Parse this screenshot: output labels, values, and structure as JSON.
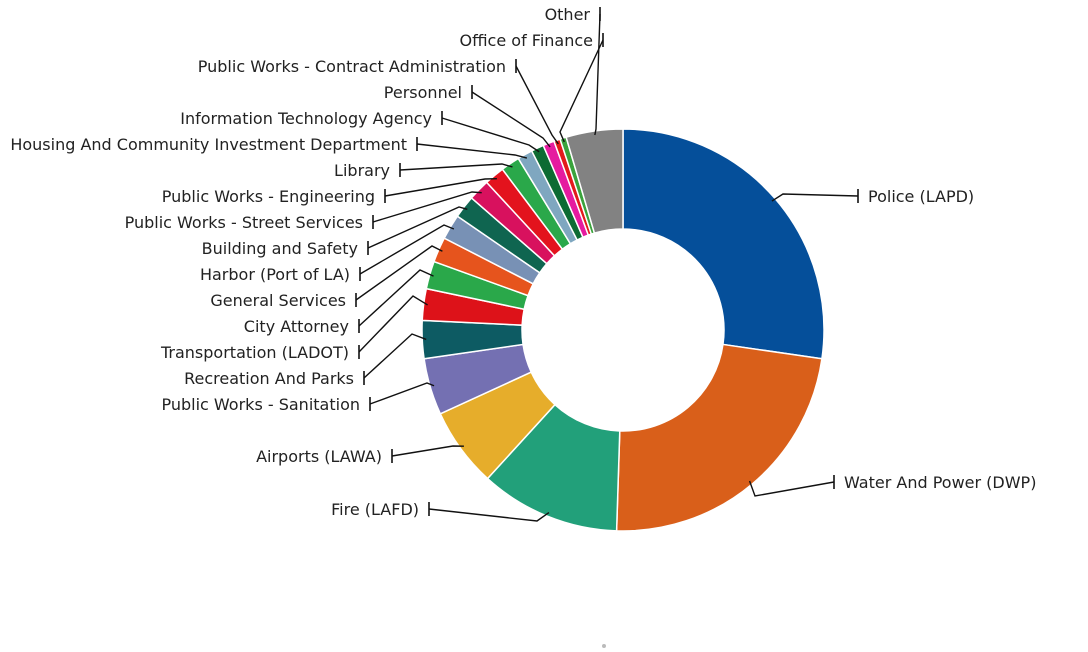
{
  "chart_data": {
    "type": "pie",
    "title": "",
    "variant": "donut",
    "slices": [
      {
        "label": "Police (LAPD)",
        "value": 26.9,
        "color": "#054f9a"
      },
      {
        "label": "Water And Power (DWP)",
        "value": 22.9,
        "color": "#d95f1a"
      },
      {
        "label": "Fire (LAFD)",
        "value": 11.1,
        "color": "#22a07a"
      },
      {
        "label": "Airports (LAWA)",
        "value": 6.3,
        "color": "#e6ad2b"
      },
      {
        "label": "Public Works - Sanitation",
        "value": 4.5,
        "color": "#7470b2"
      },
      {
        "label": "Recreation And Parks",
        "value": 3.0,
        "color": "#0d5b63"
      },
      {
        "label": "Transportation (LADOT)",
        "value": 2.5,
        "color": "#dd1219"
      },
      {
        "label": "City Attorney",
        "value": 2.2,
        "color": "#2aa84a"
      },
      {
        "label": "General Services",
        "value": 2.0,
        "color": "#e6541d"
      },
      {
        "label": "Harbor (Port of LA)",
        "value": 2.0,
        "color": "#7891b5"
      },
      {
        "label": "Building and Safety",
        "value": 1.8,
        "color": "#0f6550"
      },
      {
        "label": "Public Works - Street Services",
        "value": 1.7,
        "color": "#d8115e"
      },
      {
        "label": "Public Works - Engineering",
        "value": 1.6,
        "color": "#e3131d"
      },
      {
        "label": "Library",
        "value": 1.5,
        "color": "#2aa84a"
      },
      {
        "label": "Housing And Community Investment Department",
        "value": 1.2,
        "color": "#7fa7c0"
      },
      {
        "label": "Information Technology Agency",
        "value": 1.0,
        "color": "#0d6b33"
      },
      {
        "label": "Personnel",
        "value": 0.9,
        "color": "#e51b9f"
      },
      {
        "label": "Public Works - Contract Administration",
        "value": 0.5,
        "color": "#e31a1c"
      },
      {
        "label": "Office of Finance",
        "value": 0.5,
        "color": "#3aa33c"
      },
      {
        "label": "Other",
        "value": 4.5,
        "color": "#828282"
      }
    ]
  }
}
